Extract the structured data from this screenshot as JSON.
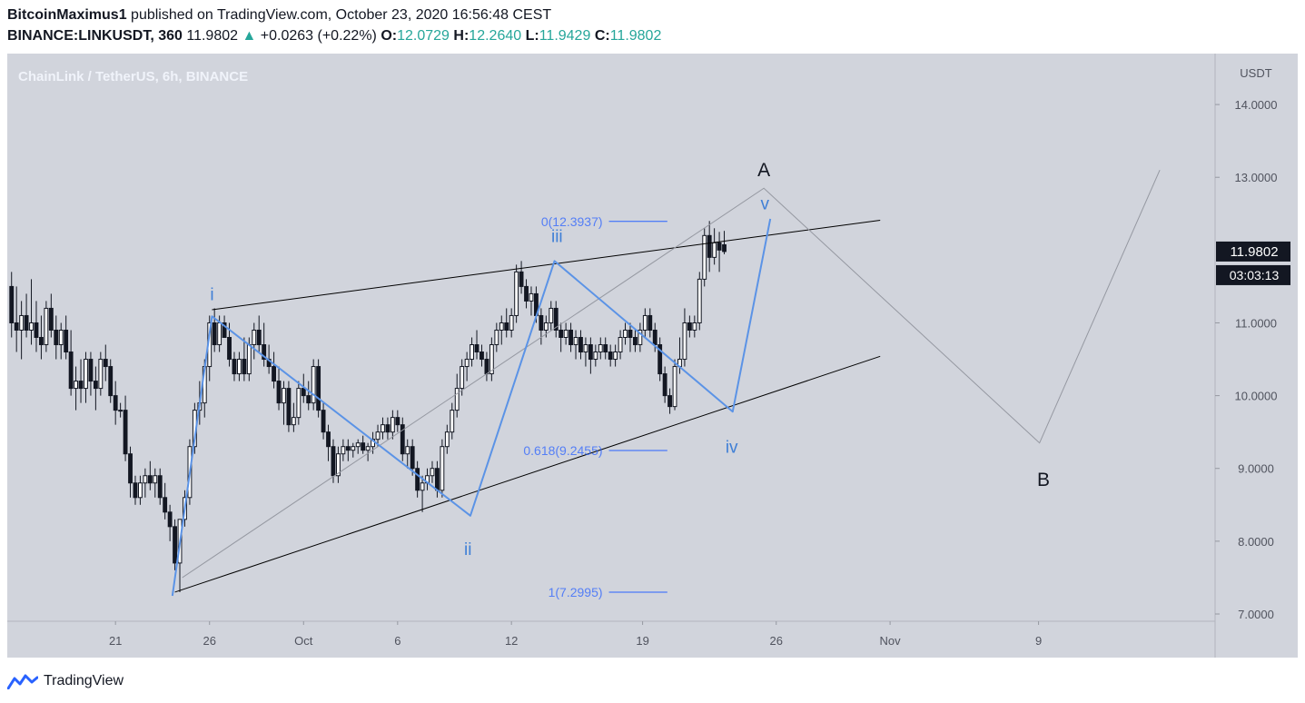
{
  "header": {
    "author": "BitcoinMaximus1",
    "published_text": "published on TradingView.com, October 23, 2020 16:56:48 CEST",
    "symbol": "BINANCE:LINKUSDT, 360",
    "last_price": "11.9802",
    "change_arrow": "▲",
    "change": "+0.0263 (+0.22%)",
    "open_label": "O:",
    "open": "12.0729",
    "high_label": "H:",
    "high": "12.2640",
    "low_label": "L:",
    "low": "11.9429",
    "close_label": "C:",
    "close": "11.9802"
  },
  "footer": {
    "brand": "TradingView"
  },
  "colors": {
    "background": "#d1d4dc",
    "candle_up": "#ffffff",
    "candle_down": "#131722",
    "wave": "#5b93e6",
    "fib": "#2962ff",
    "trendline": "#000000",
    "projection": "#9598a1"
  },
  "chart_data": {
    "type": "candlestick",
    "title": "ChainLink / TetherUS, 6h, BINANCE",
    "y_axis_label": "USDT",
    "ylim": [
      6.9,
      14.7
    ],
    "xlim": [
      0,
      191
    ],
    "y_ticks": [
      {
        "value": 14,
        "label": "14.0000"
      },
      {
        "value": 13,
        "label": "13.0000"
      },
      {
        "value": 11,
        "label": "11.0000"
      },
      {
        "value": 10,
        "label": "10.0000"
      },
      {
        "value": 9,
        "label": "9.0000"
      },
      {
        "value": 8,
        "label": "8.0000"
      },
      {
        "value": 7,
        "label": "7.0000"
      }
    ],
    "x_ticks": [
      {
        "bar": 21.5,
        "label": "21"
      },
      {
        "bar": 40.5,
        "label": "26"
      },
      {
        "bar": 59.5,
        "label": "Oct"
      },
      {
        "bar": 78.5,
        "label": "6"
      },
      {
        "bar": 101.5,
        "label": "12"
      },
      {
        "bar": 128,
        "label": "19"
      },
      {
        "bar": 155,
        "label": "26"
      },
      {
        "bar": 178,
        "label": "Nov"
      },
      {
        "bar": 208,
        "label": "9"
      }
    ],
    "price_badge": {
      "value": 11.9802,
      "label": "11.9802",
      "timer": "03:03:13"
    },
    "candles": [
      [
        11.5,
        11.7,
        10.8,
        11.0
      ],
      [
        11.0,
        11.5,
        10.6,
        10.9
      ],
      [
        10.9,
        11.3,
        10.5,
        11.1
      ],
      [
        11.1,
        11.4,
        10.8,
        10.9
      ],
      [
        10.9,
        11.6,
        10.7,
        11.0
      ],
      [
        11.0,
        11.3,
        10.6,
        10.8
      ],
      [
        10.8,
        11.1,
        10.5,
        10.7
      ],
      [
        10.7,
        11.3,
        10.6,
        11.2
      ],
      [
        11.2,
        11.4,
        10.8,
        10.9
      ],
      [
        10.9,
        11.1,
        10.5,
        10.7
      ],
      [
        10.7,
        11.0,
        10.5,
        10.9
      ],
      [
        10.9,
        11.1,
        10.5,
        10.6
      ],
      [
        10.6,
        10.9,
        10.0,
        10.1
      ],
      [
        10.1,
        10.4,
        9.8,
        10.2
      ],
      [
        10.2,
        10.5,
        9.9,
        10.1
      ],
      [
        10.1,
        10.6,
        9.9,
        10.5
      ],
      [
        10.5,
        10.6,
        10.0,
        10.2
      ],
      [
        10.2,
        10.4,
        9.8,
        10.1
      ],
      [
        10.1,
        10.6,
        10.0,
        10.5
      ],
      [
        10.5,
        10.7,
        10.2,
        10.4
      ],
      [
        10.4,
        10.5,
        9.9,
        10.0
      ],
      [
        10.0,
        10.2,
        9.6,
        9.8
      ],
      [
        9.8,
        9.9,
        9.7,
        9.8
      ],
      [
        9.8,
        10.0,
        9.1,
        9.2
      ],
      [
        9.2,
        9.3,
        8.6,
        8.8
      ],
      [
        8.8,
        8.9,
        8.5,
        8.6
      ],
      [
        8.6,
        8.9,
        8.5,
        8.8
      ],
      [
        8.8,
        9.0,
        8.6,
        8.9
      ],
      [
        8.9,
        9.1,
        8.7,
        8.8
      ],
      [
        8.8,
        9.0,
        8.6,
        8.9
      ],
      [
        8.9,
        9.0,
        8.5,
        8.6
      ],
      [
        8.6,
        8.8,
        8.3,
        8.4
      ],
      [
        8.4,
        8.5,
        8.0,
        8.2
      ],
      [
        8.2,
        8.3,
        7.6,
        7.7
      ],
      [
        7.7,
        8.3,
        7.3,
        8.3
      ],
      [
        8.3,
        8.7,
        8.2,
        8.6
      ],
      [
        8.6,
        9.4,
        8.5,
        9.3
      ],
      [
        9.3,
        9.9,
        9.2,
        9.8
      ],
      [
        9.8,
        10.2,
        9.6,
        9.9
      ],
      [
        9.9,
        10.5,
        9.7,
        10.4
      ],
      [
        10.4,
        11.1,
        10.2,
        11.0
      ],
      [
        11.0,
        11.2,
        10.6,
        10.7
      ],
      [
        10.7,
        11.1,
        10.6,
        11.0
      ],
      [
        11.0,
        11.1,
        10.8,
        10.8
      ],
      [
        10.8,
        11.0,
        10.4,
        10.5
      ],
      [
        10.5,
        10.6,
        10.2,
        10.3
      ],
      [
        10.3,
        10.6,
        10.2,
        10.5
      ],
      [
        10.5,
        10.8,
        10.2,
        10.3
      ],
      [
        10.3,
        10.8,
        10.2,
        10.7
      ],
      [
        10.7,
        11.0,
        10.5,
        10.9
      ],
      [
        10.9,
        11.1,
        10.6,
        10.7
      ],
      [
        10.7,
        11.0,
        10.4,
        10.5
      ],
      [
        10.5,
        10.7,
        10.3,
        10.4
      ],
      [
        10.4,
        10.6,
        10.1,
        10.2
      ],
      [
        10.2,
        10.4,
        9.8,
        9.9
      ],
      [
        9.9,
        10.2,
        9.6,
        10.1
      ],
      [
        10.1,
        10.2,
        9.5,
        9.6
      ],
      [
        9.6,
        9.9,
        9.5,
        9.7
      ],
      [
        9.7,
        10.2,
        9.6,
        10.1
      ],
      [
        10.1,
        10.3,
        9.9,
        10.0
      ],
      [
        10.0,
        10.2,
        9.8,
        9.9
      ],
      [
        9.9,
        10.5,
        9.8,
        10.4
      ],
      [
        10.4,
        10.5,
        9.7,
        9.8
      ],
      [
        9.8,
        9.9,
        9.4,
        9.5
      ],
      [
        9.5,
        9.6,
        9.1,
        9.3
      ],
      [
        9.3,
        9.4,
        8.8,
        8.9
      ],
      [
        8.9,
        9.3,
        8.8,
        9.2
      ],
      [
        9.2,
        9.4,
        9.1,
        9.3
      ],
      [
        9.3,
        9.4,
        9.1,
        9.25
      ],
      [
        9.25,
        9.35,
        9.15,
        9.3
      ],
      [
        9.3,
        9.4,
        9.2,
        9.35
      ],
      [
        9.35,
        9.45,
        9.2,
        9.25
      ],
      [
        9.25,
        9.35,
        9.1,
        9.3
      ],
      [
        9.3,
        9.5,
        9.2,
        9.4
      ],
      [
        9.4,
        9.6,
        9.3,
        9.5
      ],
      [
        9.5,
        9.7,
        9.4,
        9.6
      ],
      [
        9.6,
        9.7,
        9.4,
        9.5
      ],
      [
        9.5,
        9.8,
        9.4,
        9.7
      ],
      [
        9.7,
        9.8,
        9.5,
        9.6
      ],
      [
        9.6,
        9.7,
        9.1,
        9.2
      ],
      [
        9.2,
        9.4,
        9.0,
        9.3
      ],
      [
        9.3,
        9.4,
        8.9,
        9.0
      ],
      [
        9.0,
        9.1,
        8.6,
        8.7
      ],
      [
        8.7,
        8.9,
        8.4,
        8.8
      ],
      [
        8.8,
        9.0,
        8.7,
        8.9
      ],
      [
        8.9,
        9.1,
        8.8,
        9.0
      ],
      [
        9.0,
        9.1,
        8.6,
        8.7
      ],
      [
        8.7,
        9.4,
        8.6,
        9.3
      ],
      [
        9.3,
        9.6,
        9.2,
        9.5
      ],
      [
        9.5,
        9.9,
        9.4,
        9.8
      ],
      [
        9.8,
        10.3,
        9.7,
        10.1
      ],
      [
        10.1,
        10.5,
        10.0,
        10.4
      ],
      [
        10.4,
        10.6,
        10.2,
        10.5
      ],
      [
        10.5,
        10.8,
        10.4,
        10.7
      ],
      [
        10.7,
        10.9,
        10.5,
        10.6
      ],
      [
        10.6,
        10.7,
        10.4,
        10.5
      ],
      [
        10.5,
        10.6,
        10.2,
        10.3
      ],
      [
        10.3,
        10.8,
        10.2,
        10.7
      ],
      [
        10.7,
        11.0,
        10.6,
        10.9
      ],
      [
        10.9,
        11.1,
        10.7,
        11.0
      ],
      [
        11.0,
        11.2,
        10.8,
        10.9
      ],
      [
        10.9,
        11.2,
        10.8,
        11.1
      ],
      [
        11.1,
        11.8,
        11.0,
        11.7
      ],
      [
        11.7,
        11.85,
        11.4,
        11.5
      ],
      [
        11.5,
        11.6,
        11.2,
        11.3
      ],
      [
        11.3,
        11.5,
        11.1,
        11.4
      ],
      [
        11.4,
        11.5,
        11.0,
        11.1
      ],
      [
        11.1,
        11.2,
        10.7,
        10.9
      ],
      [
        10.9,
        11.1,
        10.8,
        11.0
      ],
      [
        11.0,
        11.3,
        10.9,
        11.2
      ],
      [
        11.2,
        11.3,
        10.8,
        10.9
      ],
      [
        10.9,
        11.0,
        10.6,
        10.8
      ],
      [
        10.8,
        11.0,
        10.7,
        10.9
      ],
      [
        10.9,
        11.0,
        10.6,
        10.7
      ],
      [
        10.7,
        10.9,
        10.5,
        10.8
      ],
      [
        10.8,
        10.9,
        10.5,
        10.6
      ],
      [
        10.6,
        10.8,
        10.4,
        10.7
      ],
      [
        10.7,
        10.8,
        10.3,
        10.5
      ],
      [
        10.5,
        10.7,
        10.4,
        10.6
      ],
      [
        10.6,
        10.8,
        10.5,
        10.7
      ],
      [
        10.7,
        10.8,
        10.5,
        10.6
      ],
      [
        10.6,
        10.7,
        10.4,
        10.5
      ],
      [
        10.5,
        10.7,
        10.4,
        10.6
      ],
      [
        10.6,
        10.9,
        10.5,
        10.8
      ],
      [
        10.8,
        11.0,
        10.7,
        10.9
      ],
      [
        10.9,
        11.0,
        10.6,
        10.8
      ],
      [
        10.8,
        10.9,
        10.6,
        10.7
      ],
      [
        10.7,
        11.0,
        10.6,
        10.9
      ],
      [
        10.9,
        11.2,
        10.8,
        11.1
      ],
      [
        11.1,
        11.2,
        10.8,
        10.9
      ],
      [
        10.9,
        11.0,
        10.6,
        10.7
      ],
      [
        10.7,
        10.8,
        10.2,
        10.3
      ],
      [
        10.3,
        10.4,
        9.9,
        10.0
      ],
      [
        10.0,
        10.1,
        9.75,
        9.85
      ],
      [
        9.85,
        10.5,
        9.8,
        10.4
      ],
      [
        10.4,
        10.8,
        10.3,
        10.5
      ],
      [
        10.5,
        11.2,
        10.4,
        11.0
      ],
      [
        11.0,
        11.1,
        10.8,
        10.9
      ],
      [
        10.9,
        11.1,
        10.8,
        11.0
      ],
      [
        11.0,
        11.7,
        10.9,
        11.6
      ],
      [
        11.6,
        12.3,
        11.5,
        12.2
      ],
      [
        12.2,
        12.4,
        11.7,
        11.9
      ],
      [
        11.9,
        12.3,
        11.8,
        12.1
      ],
      [
        12.1,
        12.25,
        11.7,
        12.0
      ],
      [
        12.0729,
        12.264,
        11.9429,
        11.9802
      ]
    ],
    "trendlines": [
      {
        "name": "upper-wedge-line",
        "x1": 41,
        "y1": 11.18,
        "x2": 176,
        "y2": 12.41
      },
      {
        "name": "lower-wedge-line",
        "x1": 33.5,
        "y1": 7.3,
        "x2": 176,
        "y2": 10.54
      }
    ],
    "wave_path": [
      {
        "bar": 33,
        "price": 7.25
      },
      {
        "bar": 41,
        "price": 11.09
      },
      {
        "bar": 93.2,
        "price": 8.35
      },
      {
        "bar": 110.2,
        "price": 11.85
      },
      {
        "bar": 146.2,
        "price": 9.78
      },
      {
        "bar": 153.8,
        "price": 12.43
      }
    ],
    "projection_path": [
      {
        "bar": 35,
        "price": 7.5
      },
      {
        "bar": 152.5,
        "price": 12.85
      },
      {
        "bar": 208.2,
        "price": 9.35
      },
      {
        "bar": 232.5,
        "price": 13.1
      }
    ],
    "wave_labels": [
      {
        "text": "i",
        "bar": 41,
        "price": 11.4
      },
      {
        "text": "ii",
        "bar": 92.7,
        "price": 7.9
      },
      {
        "text": "iii",
        "bar": 110.7,
        "price": 12.2
      },
      {
        "text": "iv",
        "bar": 146,
        "price": 9.3
      },
      {
        "text": "v",
        "bar": 152.7,
        "price": 12.65
      }
    ],
    "abc_labels": [
      {
        "text": "A",
        "bar": 152.5,
        "price": 13.1
      },
      {
        "text": "B",
        "bar": 209,
        "price": 8.85
      }
    ],
    "fib_levels": [
      {
        "ratio": 0,
        "price": 12.3937,
        "label": "0(12.3937)",
        "x_start": 119,
        "x_end": 133
      },
      {
        "ratio": 0.618,
        "price": 9.2455,
        "label": "0.618(9.2455)",
        "x_start": 119,
        "x_end": 133
      },
      {
        "ratio": 1,
        "price": 7.2995,
        "label": "1(7.2995)",
        "x_start": 119,
        "x_end": 133
      }
    ]
  }
}
